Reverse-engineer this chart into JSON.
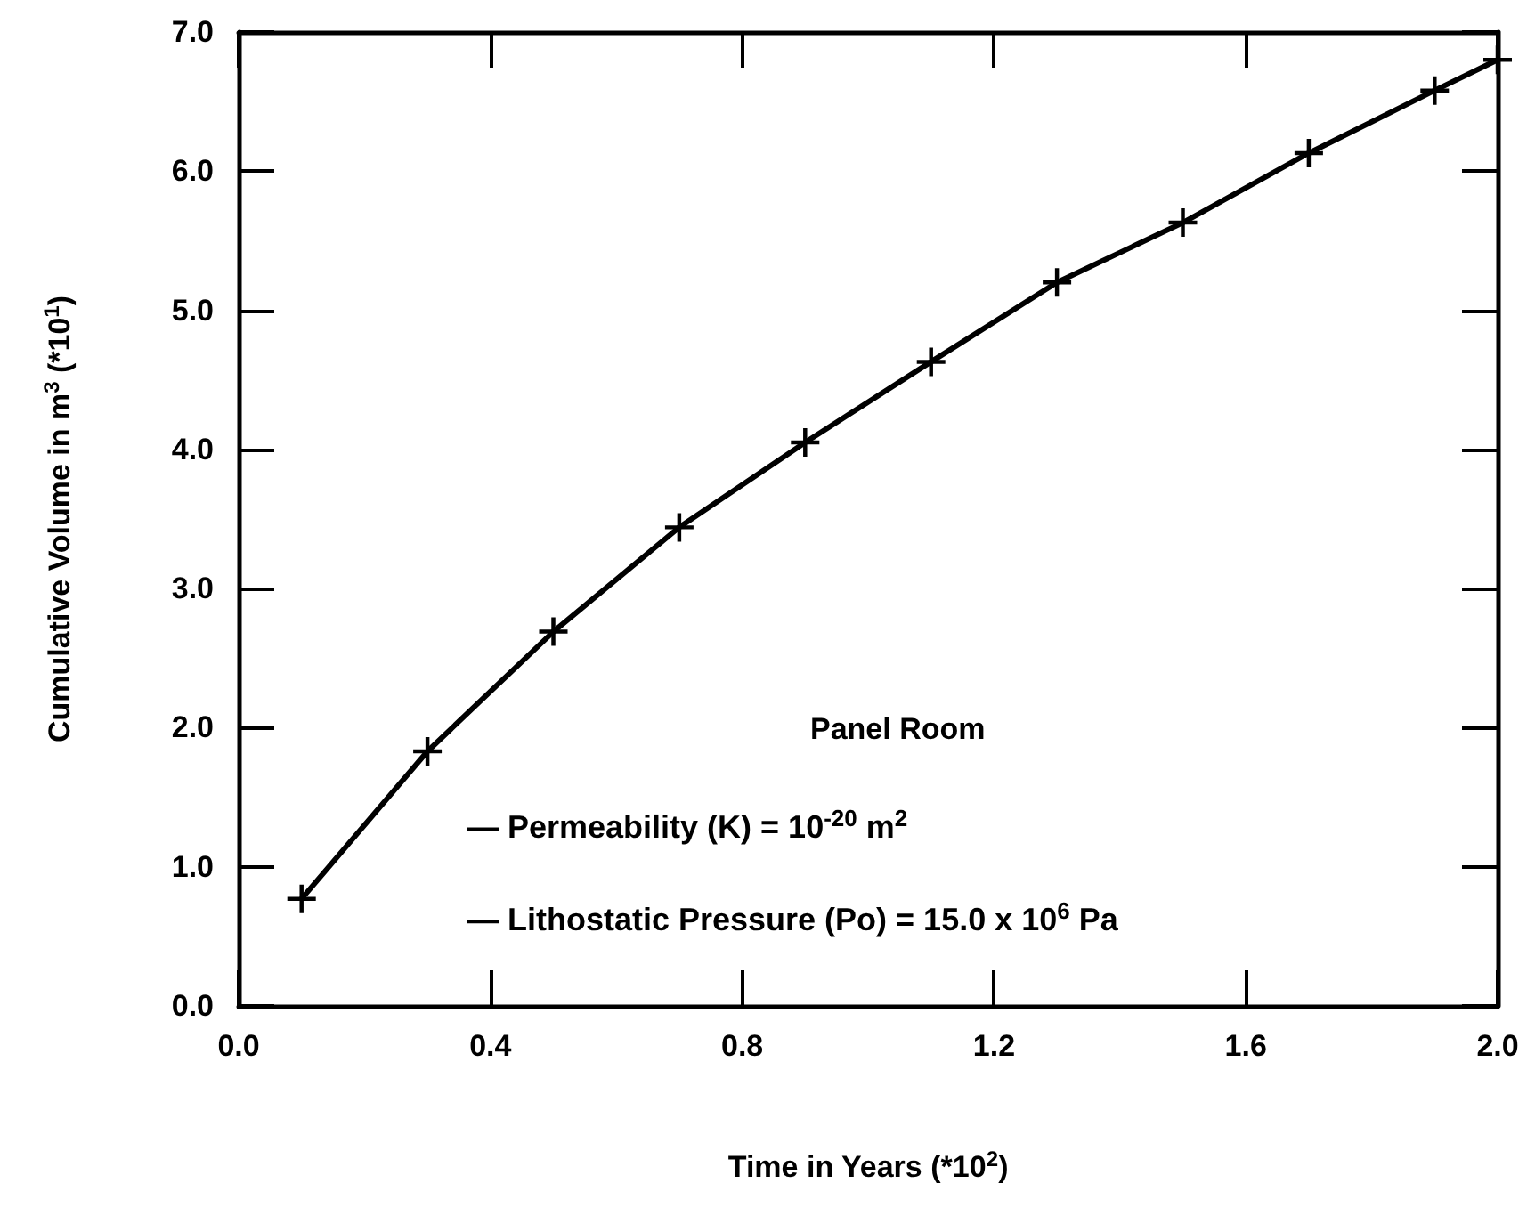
{
  "chart_data": {
    "type": "line",
    "xlabel": "Time in Years (*10$^{2}$)",
    "ylabel": "Cumulative Volume in m$^{3}$ (*10$^{1}$)",
    "x": [
      0.1,
      0.3,
      0.5,
      0.7,
      0.9,
      1.1,
      1.3,
      1.5,
      1.7,
      1.9,
      2.0
    ],
    "series": [
      {
        "color": "#000000",
        "values": [
          0.77,
          1.83,
          2.69,
          3.44,
          4.05,
          4.63,
          5.2,
          5.63,
          6.13,
          6.58,
          6.8
        ]
      }
    ],
    "xlim": [
      0,
      2.0
    ],
    "xticks": [
      {
        "value": 0,
        "label": "0.0"
      },
      {
        "value": 0.4,
        "label": "0.4"
      },
      {
        "value": 0.8,
        "label": "0.8"
      },
      {
        "value": 1.2,
        "label": "1.2"
      },
      {
        "value": 1.6,
        "label": "1.6"
      },
      {
        "value": 2.0,
        "label": "2.0"
      }
    ],
    "ylim": [
      0,
      7.0
    ],
    "yticks": [
      {
        "value": 0,
        "label": "0.0"
      },
      {
        "value": 1,
        "label": "1.0"
      },
      {
        "value": 2,
        "label": "2.0"
      },
      {
        "value": 3,
        "label": "3.0"
      },
      {
        "value": 4,
        "label": "4.0"
      },
      {
        "value": 5,
        "label": "5.0"
      },
      {
        "value": 6,
        "label": "6.0"
      },
      {
        "value": 7,
        "label": "7.0"
      }
    ],
    "marker": "cross",
    "line_style": "solid",
    "grid": false,
    "annotations": [
      "Panel Room",
      "— Permeability (K) = 10$^{-20}$ m$^{2}$",
      "— Lithostatic Pressure (Po) = 15.0 x 10$^{6}$ Pa"
    ]
  }
}
